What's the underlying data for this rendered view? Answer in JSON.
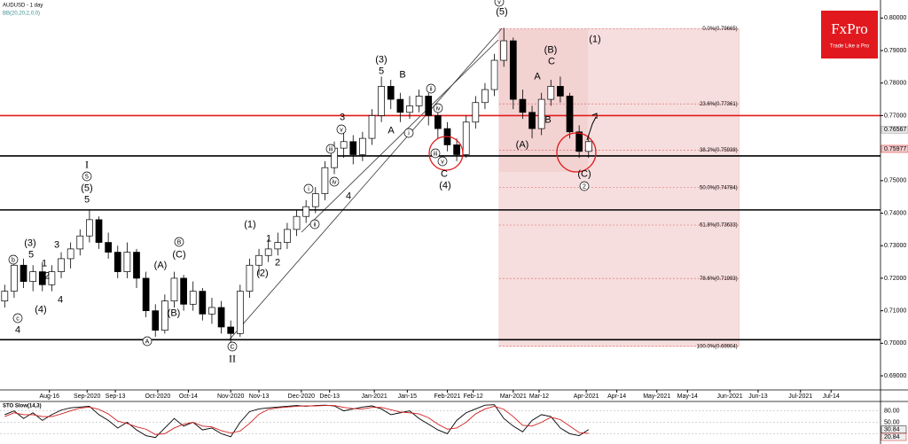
{
  "chart_data": {
    "type": "candlestick",
    "symbol": "AUDUSD - 1 day",
    "indicator": "BB(20,20,2,0,0)",
    "logo": {
      "name": "FxPro",
      "tagline": "Trade Like a Pro"
    },
    "xlim": [
      "2020-07-26",
      "2021-08-04"
    ],
    "xticks": [
      {
        "value": "2020-08-16",
        "label": "Aug-16"
      },
      {
        "value": "2020-09-01",
        "label": "Sep-2020"
      },
      {
        "value": "2020-09-13",
        "label": "Sep-13"
      },
      {
        "value": "2020-10-01",
        "label": "Oct-2020"
      },
      {
        "value": "2020-10-14",
        "label": "Oct-14"
      },
      {
        "value": "2020-11-01",
        "label": "Nov-2020"
      },
      {
        "value": "2020-11-13",
        "label": "Nov-13"
      },
      {
        "value": "2020-12-01",
        "label": "Dec-2020"
      },
      {
        "value": "2020-12-13",
        "label": "Dec-13"
      },
      {
        "value": "2021-01-01",
        "label": "Jan-2021"
      },
      {
        "value": "2021-01-15",
        "label": "Jan-15"
      },
      {
        "value": "2021-02-01",
        "label": "Feb-2021"
      },
      {
        "value": "2021-02-12",
        "label": "Feb-12"
      },
      {
        "value": "2021-03-01",
        "label": "Mar-2021"
      },
      {
        "value": "2021-03-12",
        "label": "Mar-12"
      },
      {
        "value": "2021-04-01",
        "label": "Apr-2021"
      },
      {
        "value": "2021-04-14",
        "label": "Apr-14"
      },
      {
        "value": "2021-05-01",
        "label": "May-2021"
      },
      {
        "value": "2021-05-14",
        "label": "May-14"
      },
      {
        "value": "2021-06-01",
        "label": "Jun-2021"
      },
      {
        "value": "2021-06-13",
        "label": "Jun-13"
      },
      {
        "value": "2021-07-01",
        "label": "Jul-2021"
      },
      {
        "value": "2021-07-14",
        "label": "Jul-14"
      }
    ],
    "ylim": [
      0.68565,
      0.80554
    ],
    "yticks": [
      {
        "value": 0.8,
        "label": "0.80000"
      },
      {
        "value": 0.79,
        "label": "0.79000"
      },
      {
        "value": 0.78,
        "label": "0.78000"
      },
      {
        "value": 0.77,
        "label": "0.77000"
      },
      {
        "value": 0.75,
        "label": "0.75000"
      },
      {
        "value": 0.74,
        "label": "0.74000"
      },
      {
        "value": 0.73,
        "label": "0.73000"
      },
      {
        "value": 0.72,
        "label": "0.72000"
      },
      {
        "value": 0.71,
        "label": "0.71000"
      },
      {
        "value": 0.7,
        "label": "0.70000"
      },
      {
        "value": 0.69,
        "label": "0.69000"
      }
    ],
    "price_labels": [
      0.76567,
      0.75977
    ],
    "resistance_level": 0.77,
    "support_levels": [
      0.7576,
      0.741,
      0.7011
    ],
    "fibonacci": {
      "range": [
        "2021-02-23",
        "2021-06-05"
      ],
      "levels": [
        0.79665,
        0.77361,
        0.75938,
        0.74784,
        0.73633,
        0.71993,
        0.69904
      ],
      "labels": [
        "0.0%(0.79665)",
        "23.6%(0.77361)",
        "38.2%(0.75938)",
        "50.0%(0.74784)",
        "61.8%(0.73633)",
        "78.6%(0.71993)",
        "100.0%(0.69904)"
      ]
    },
    "x": [
      "2020-07-28",
      "2020-08-01",
      "2020-08-05",
      "2020-08-09",
      "2020-08-13",
      "2020-08-17",
      "2020-08-21",
      "2020-08-25",
      "2020-08-29",
      "2020-09-02",
      "2020-09-06",
      "2020-09-10",
      "2020-09-14",
      "2020-09-18",
      "2020-09-22",
      "2020-09-26",
      "2020-09-30",
      "2020-10-04",
      "2020-10-08",
      "2020-10-12",
      "2020-10-16",
      "2020-10-20",
      "2020-10-24",
      "2020-10-28",
      "2020-11-01",
      "2020-11-05",
      "2020-11-09",
      "2020-11-13",
      "2020-11-17",
      "2020-11-21",
      "2020-11-25",
      "2020-11-29",
      "2020-12-03",
      "2020-12-07",
      "2020-12-11",
      "2020-12-15",
      "2020-12-19",
      "2020-12-23",
      "2020-12-27",
      "2020-12-31",
      "2021-01-04",
      "2021-01-08",
      "2021-01-12",
      "2021-01-16",
      "2021-01-20",
      "2021-01-24",
      "2021-01-28",
      "2021-02-01",
      "2021-02-05",
      "2021-02-09",
      "2021-02-13",
      "2021-02-17",
      "2021-02-21",
      "2021-02-25",
      "2021-03-01",
      "2021-03-05",
      "2021-03-09",
      "2021-03-13",
      "2021-03-17",
      "2021-03-21",
      "2021-03-25",
      "2021-03-29",
      "2021-04-02"
    ],
    "open": [
      0.713,
      0.716,
      0.724,
      0.719,
      0.722,
      0.718,
      0.722,
      0.726,
      0.729,
      0.733,
      0.738,
      0.731,
      0.728,
      0.722,
      0.728,
      0.72,
      0.71,
      0.704,
      0.713,
      0.72,
      0.712,
      0.716,
      0.709,
      0.711,
      0.705,
      0.703,
      0.716,
      0.724,
      0.727,
      0.729,
      0.731,
      0.735,
      0.739,
      0.742,
      0.746,
      0.754,
      0.76,
      0.762,
      0.758,
      0.763,
      0.77,
      0.779,
      0.775,
      0.771,
      0.773,
      0.776,
      0.77,
      0.766,
      0.761,
      0.758,
      0.768,
      0.774,
      0.778,
      0.787,
      0.793,
      0.775,
      0.771,
      0.766,
      0.775,
      0.779,
      0.776,
      0.765,
      0.759
    ],
    "high": [
      0.718,
      0.726,
      0.726,
      0.724,
      0.725,
      0.724,
      0.728,
      0.731,
      0.735,
      0.741,
      0.739,
      0.734,
      0.73,
      0.731,
      0.729,
      0.722,
      0.712,
      0.715,
      0.722,
      0.721,
      0.719,
      0.717,
      0.714,
      0.713,
      0.707,
      0.718,
      0.726,
      0.729,
      0.732,
      0.734,
      0.737,
      0.741,
      0.744,
      0.748,
      0.756,
      0.762,
      0.765,
      0.764,
      0.765,
      0.772,
      0.782,
      0.781,
      0.777,
      0.776,
      0.778,
      0.777,
      0.772,
      0.768,
      0.763,
      0.77,
      0.776,
      0.78,
      0.789,
      0.797,
      0.794,
      0.778,
      0.773,
      0.777,
      0.781,
      0.782,
      0.777,
      0.767,
      0.764
    ],
    "low": [
      0.711,
      0.714,
      0.717,
      0.716,
      0.716,
      0.716,
      0.72,
      0.723,
      0.727,
      0.731,
      0.729,
      0.726,
      0.72,
      0.72,
      0.717,
      0.708,
      0.702,
      0.703,
      0.711,
      0.71,
      0.71,
      0.707,
      0.706,
      0.703,
      0.7,
      0.702,
      0.714,
      0.721,
      0.725,
      0.727,
      0.729,
      0.733,
      0.737,
      0.74,
      0.744,
      0.752,
      0.757,
      0.755,
      0.756,
      0.761,
      0.768,
      0.772,
      0.768,
      0.769,
      0.771,
      0.767,
      0.763,
      0.759,
      0.756,
      0.757,
      0.766,
      0.772,
      0.776,
      0.785,
      0.772,
      0.769,
      0.763,
      0.764,
      0.773,
      0.774,
      0.763,
      0.757,
      0.757
    ],
    "close": [
      0.716,
      0.724,
      0.719,
      0.722,
      0.718,
      0.722,
      0.726,
      0.729,
      0.733,
      0.738,
      0.731,
      0.728,
      0.722,
      0.728,
      0.72,
      0.71,
      0.704,
      0.713,
      0.72,
      0.712,
      0.716,
      0.709,
      0.711,
      0.705,
      0.703,
      0.716,
      0.724,
      0.727,
      0.729,
      0.731,
      0.735,
      0.739,
      0.742,
      0.746,
      0.754,
      0.76,
      0.762,
      0.758,
      0.763,
      0.77,
      0.779,
      0.775,
      0.771,
      0.773,
      0.776,
      0.77,
      0.766,
      0.761,
      0.758,
      0.768,
      0.774,
      0.778,
      0.787,
      0.793,
      0.775,
      0.771,
      0.766,
      0.775,
      0.779,
      0.776,
      0.765,
      0.759,
      0.762
    ],
    "wave_labels": [
      "I",
      "5",
      "(5)",
      "5",
      "(3)",
      "5",
      "3",
      "1",
      "2",
      "(4)",
      "4",
      "b",
      "c",
      "4",
      "(A)",
      "B",
      "(C)",
      "(B)",
      "A",
      "C",
      "II",
      "(1)",
      "1",
      "2",
      "(2)",
      "i",
      "ii",
      "iii",
      "iv",
      "v",
      "3",
      "4",
      "(3)",
      "5",
      "B",
      "A",
      "i",
      "ii",
      "iv",
      "iii",
      "v",
      "C",
      "(4)",
      "v",
      "(5)",
      "(1)",
      "(B)",
      "C",
      "A",
      "B",
      "(A)",
      "(C)",
      "2"
    ],
    "oscillator": {
      "title": "STO Slow(14,3)",
      "ylim": [
        0,
        100
      ],
      "yticks": [
        {
          "value": 80,
          "label": "80.00"
        },
        {
          "value": 50,
          "label": "50.00"
        },
        {
          "value": 20,
          "label": "20.00"
        }
      ],
      "series": [
        {
          "name": "%K",
          "color": "#000000",
          "values": [
            70,
            80,
            60,
            75,
            55,
            70,
            82,
            88,
            90,
            92,
            70,
            55,
            35,
            50,
            30,
            15,
            10,
            35,
            60,
            40,
            50,
            30,
            35,
            20,
            12,
            50,
            78,
            85,
            88,
            90,
            92,
            94,
            92,
            94,
            95,
            93,
            80,
            85,
            90,
            93,
            85,
            70,
            75,
            80,
            60,
            45,
            30,
            20,
            55,
            75,
            85,
            95,
            96,
            60,
            40,
            25,
            55,
            70,
            65,
            35,
            20,
            15,
            30.84
          ]
        },
        {
          "name": "%D",
          "color": "#d11f1f",
          "values": [
            65,
            75,
            70,
            70,
            65,
            65,
            72,
            80,
            87,
            90,
            84,
            72,
            53,
            47,
            38,
            32,
            18,
            20,
            35,
            45,
            50,
            40,
            38,
            28,
            22,
            27,
            47,
            71,
            84,
            88,
            90,
            92,
            93,
            93,
            94,
            94,
            89,
            86,
            85,
            89,
            89,
            83,
            77,
            75,
            72,
            62,
            45,
            32,
            35,
            50,
            72,
            85,
            92,
            84,
            65,
            42,
            40,
            50,
            63,
            57,
            40,
            23,
            20.84
          ]
        }
      ]
    }
  }
}
